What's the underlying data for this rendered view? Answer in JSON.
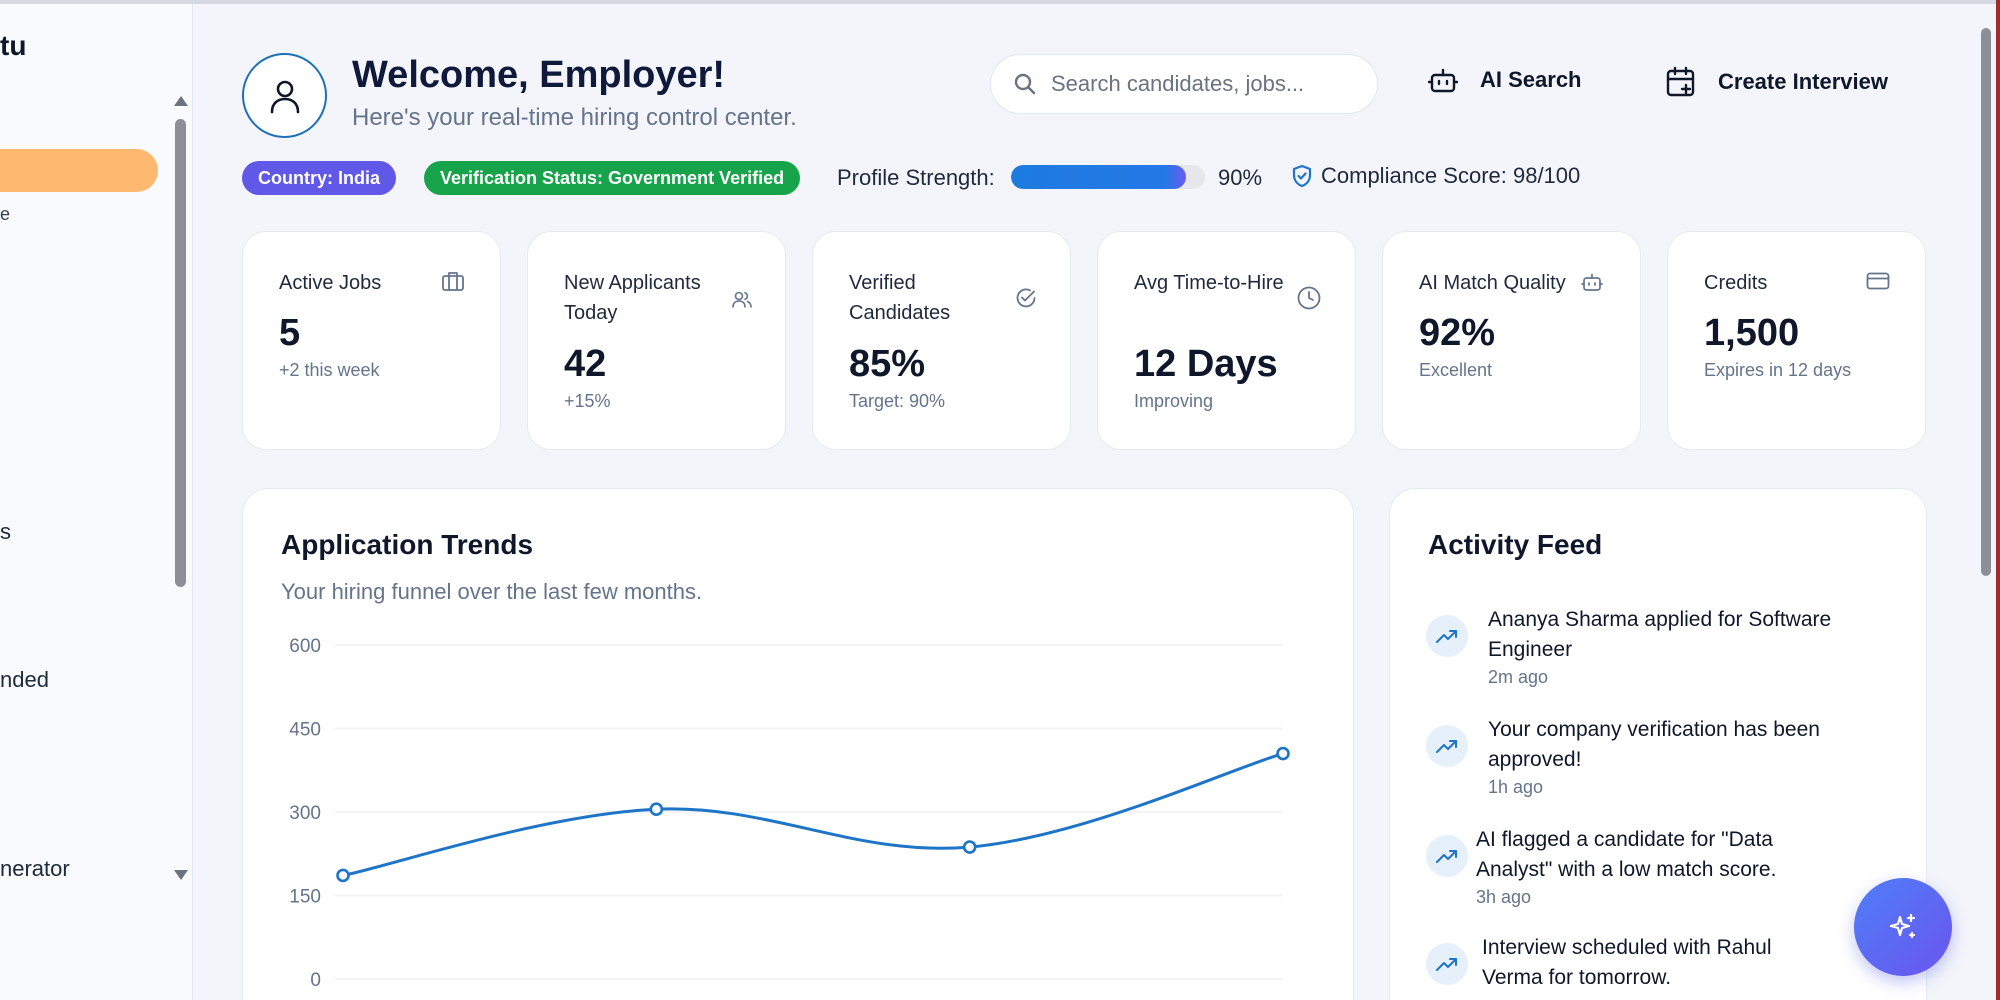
{
  "sidebar": {
    "brand_fragment": "tu",
    "active_sub": "e",
    "items": [
      {
        "label": "s"
      },
      {
        "label": "nded"
      },
      {
        "label": "nerator"
      }
    ]
  },
  "header": {
    "welcome": "Welcome, Employer!",
    "subtitle": "Here's your real-time hiring control center.",
    "search_placeholder": "Search candidates, jobs...",
    "ai_search_label": "AI Search",
    "create_interview_label": "Create Interview"
  },
  "status": {
    "country": "Country: India",
    "verification": "Verification Status: Government Verified",
    "profile_strength_label": "Profile Strength:",
    "profile_strength_value": "90%",
    "profile_strength_fraction": 0.9,
    "compliance": "Compliance Score: 98/100"
  },
  "stats": [
    {
      "label": "Active Jobs",
      "value": "5",
      "sub": "+2 this week",
      "icon": "briefcase-icon"
    },
    {
      "label": "New Applicants Today",
      "value": "42",
      "sub": "+15%",
      "icon": "users-icon"
    },
    {
      "label": "Verified Candidates",
      "value": "85%",
      "sub": "Target: 90%",
      "icon": "check-circle-icon"
    },
    {
      "label": "Avg Time-to-Hire",
      "value": "12 Days",
      "sub": "Improving",
      "icon": "clock-icon"
    },
    {
      "label": "AI Match Quality",
      "value": "92%",
      "sub": "Excellent",
      "icon": "bot-icon"
    },
    {
      "label": "Credits",
      "value": "1,500",
      "sub": "Expires in 12 days",
      "icon": "credit-card-icon"
    }
  ],
  "trends": {
    "title": "Application Trends",
    "subtitle": "Your hiring funnel over the last few months."
  },
  "chart_data": {
    "type": "line",
    "title": "",
    "xlabel": "",
    "ylabel": "",
    "ylim": [
      0,
      600
    ],
    "yticks": [
      "0",
      "150",
      "300",
      "450",
      "600"
    ],
    "series": [
      {
        "values": [
          186,
          305,
          237,
          405
        ]
      }
    ],
    "grid": true,
    "color": "#1e74c6"
  },
  "feed": {
    "title": "Activity Feed",
    "items": [
      {
        "message": "Ananya Sharma applied for Software Engineer",
        "time": "2m ago"
      },
      {
        "message": "Your company verification has been approved!",
        "time": "1h ago"
      },
      {
        "message": "AI flagged a candidate for \"Data Analyst\" with a low match score.",
        "time": "3h ago"
      },
      {
        "message": "Interview scheduled with Rahul Verma for tomorrow.",
        "time": ""
      }
    ]
  },
  "colors": {
    "accent": "#1e74c6",
    "sidebar_active": "#ffb870",
    "country_badge": "#6158e8",
    "verified_badge": "#16a34a"
  }
}
